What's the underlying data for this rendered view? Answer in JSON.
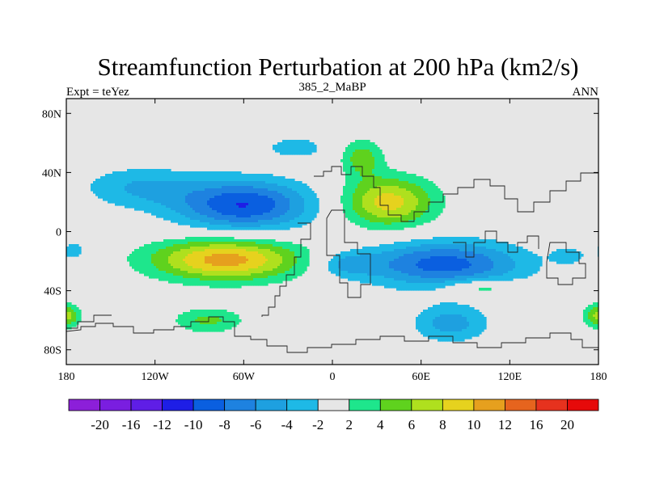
{
  "chart_data": {
    "type": "contour-map",
    "title": "Streamfunction Perturbation at 200 hPa (km2/s)",
    "left_string": "Expt = teYez",
    "center_string": "385_2_MaBP",
    "right_string": "ANN",
    "x_axis": {
      "range": [
        -180,
        180
      ],
      "ticks": [
        -180,
        -120,
        -60,
        0,
        60,
        120,
        180
      ],
      "tick_labels": [
        "180",
        "120W",
        "60W",
        "0",
        "60E",
        "120E",
        "180"
      ]
    },
    "y_axis": {
      "range": [
        -90,
        90
      ],
      "ticks": [
        80,
        40,
        0,
        -40,
        -80
      ],
      "tick_labels": [
        "80N",
        "40N",
        "0",
        "40S",
        "80S"
      ]
    },
    "missing_color": "#e6e6e6",
    "colorbar": {
      "labels": [
        "-20",
        "-16",
        "-12",
        "-10",
        "-8",
        "-6",
        "-4",
        "-2",
        "2",
        "4",
        "6",
        "8",
        "10",
        "12",
        "16",
        "20"
      ],
      "colors": [
        "#8c1fd9",
        "#7a1ee0",
        "#5f1ee6",
        "#1e1ee6",
        "#0a5fe0",
        "#1e82e0",
        "#1ea0e0",
        "#1eb9e6",
        "#e6e6e6",
        "#1ee68c",
        "#5fd21e",
        "#afe01e",
        "#e6d21e",
        "#e6a01e",
        "#e6641e",
        "#e6321e",
        "#e60a0a"
      ]
    },
    "anomalies": [
      {
        "lon": -60,
        "lat": 18,
        "sx": 32,
        "sy": 12,
        "amp": -10,
        "name": "north-pacific-low"
      },
      {
        "lon": -130,
        "lat": 30,
        "sx": 28,
        "sy": 10,
        "amp": -4,
        "name": "west-pacific-low"
      },
      {
        "lon": -25,
        "lat": 57,
        "sx": 14,
        "sy": 5,
        "amp": -3.5,
        "name": "arctic-low"
      },
      {
        "lon": -72,
        "lat": -19,
        "sx": 36,
        "sy": 10,
        "amp": 11,
        "name": "south-pacific-high"
      },
      {
        "lon": -175,
        "lat": -13,
        "sx": 6,
        "sy": 5,
        "amp": -3,
        "name": "dateline-low"
      },
      {
        "lon": 38,
        "lat": 20,
        "sx": 22,
        "sy": 12,
        "amp": 9,
        "name": "asian-high"
      },
      {
        "lon": 20,
        "lat": 50,
        "sx": 10,
        "sy": 9,
        "amp": 5,
        "name": "eurasian-high-n"
      },
      {
        "lon": 75,
        "lat": -22,
        "sx": 38,
        "sy": 11,
        "amp": -9,
        "name": "indian-ocean-low"
      },
      {
        "lon": 10,
        "lat": -22,
        "sx": 14,
        "sy": 6,
        "amp": -4,
        "name": "atlantic-low"
      },
      {
        "lon": -84,
        "lat": -60,
        "sx": 17,
        "sy": 6,
        "amp": 4.5,
        "name": "drake-high"
      },
      {
        "lon": 100,
        "lat": -38,
        "sx": 17,
        "sy": 4,
        "amp": 4.5,
        "name": "south-indian-high"
      },
      {
        "lon": 80,
        "lat": -62,
        "sx": 18,
        "sy": 9,
        "amp": -5,
        "name": "southern-ocean-low"
      },
      {
        "lon": 160,
        "lat": -16,
        "sx": 8,
        "sy": 4,
        "amp": -3,
        "name": "coral-sea-low"
      },
      {
        "lon": 178,
        "lat": -57,
        "sx": 7,
        "sy": 6,
        "amp": 4,
        "name": "ross-high"
      },
      {
        "lon": -178,
        "lat": -57,
        "sx": 5,
        "sy": 5,
        "amp": 3.5,
        "name": "dateline-high"
      }
    ]
  }
}
